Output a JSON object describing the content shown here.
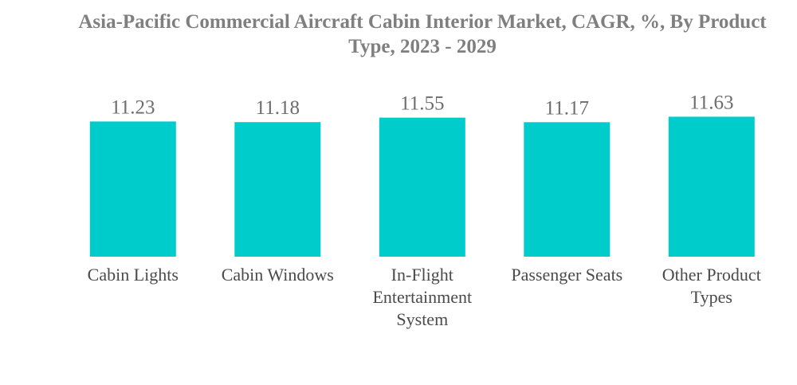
{
  "chart_data": {
    "type": "bar",
    "title": "Asia-Pacific Commercial Aircraft Cabin Interior Market, CAGR, %, By Product Type, 2023 - 2029",
    "categories": [
      [
        "Cabin Lights"
      ],
      [
        "Cabin Windows"
      ],
      [
        "In-Flight",
        "Entertainment",
        "System"
      ],
      [
        "Passenger Seats"
      ],
      [
        "Other Product",
        "Types"
      ]
    ],
    "values": [
      11.23,
      11.18,
      11.55,
      11.17,
      11.63
    ],
    "value_labels": [
      "11.23",
      "11.18",
      "11.55",
      "11.17",
      "11.63"
    ],
    "xlabel": "",
    "ylabel": "",
    "grid": false,
    "legend": "none",
    "bar_color": "#00cccc"
  }
}
